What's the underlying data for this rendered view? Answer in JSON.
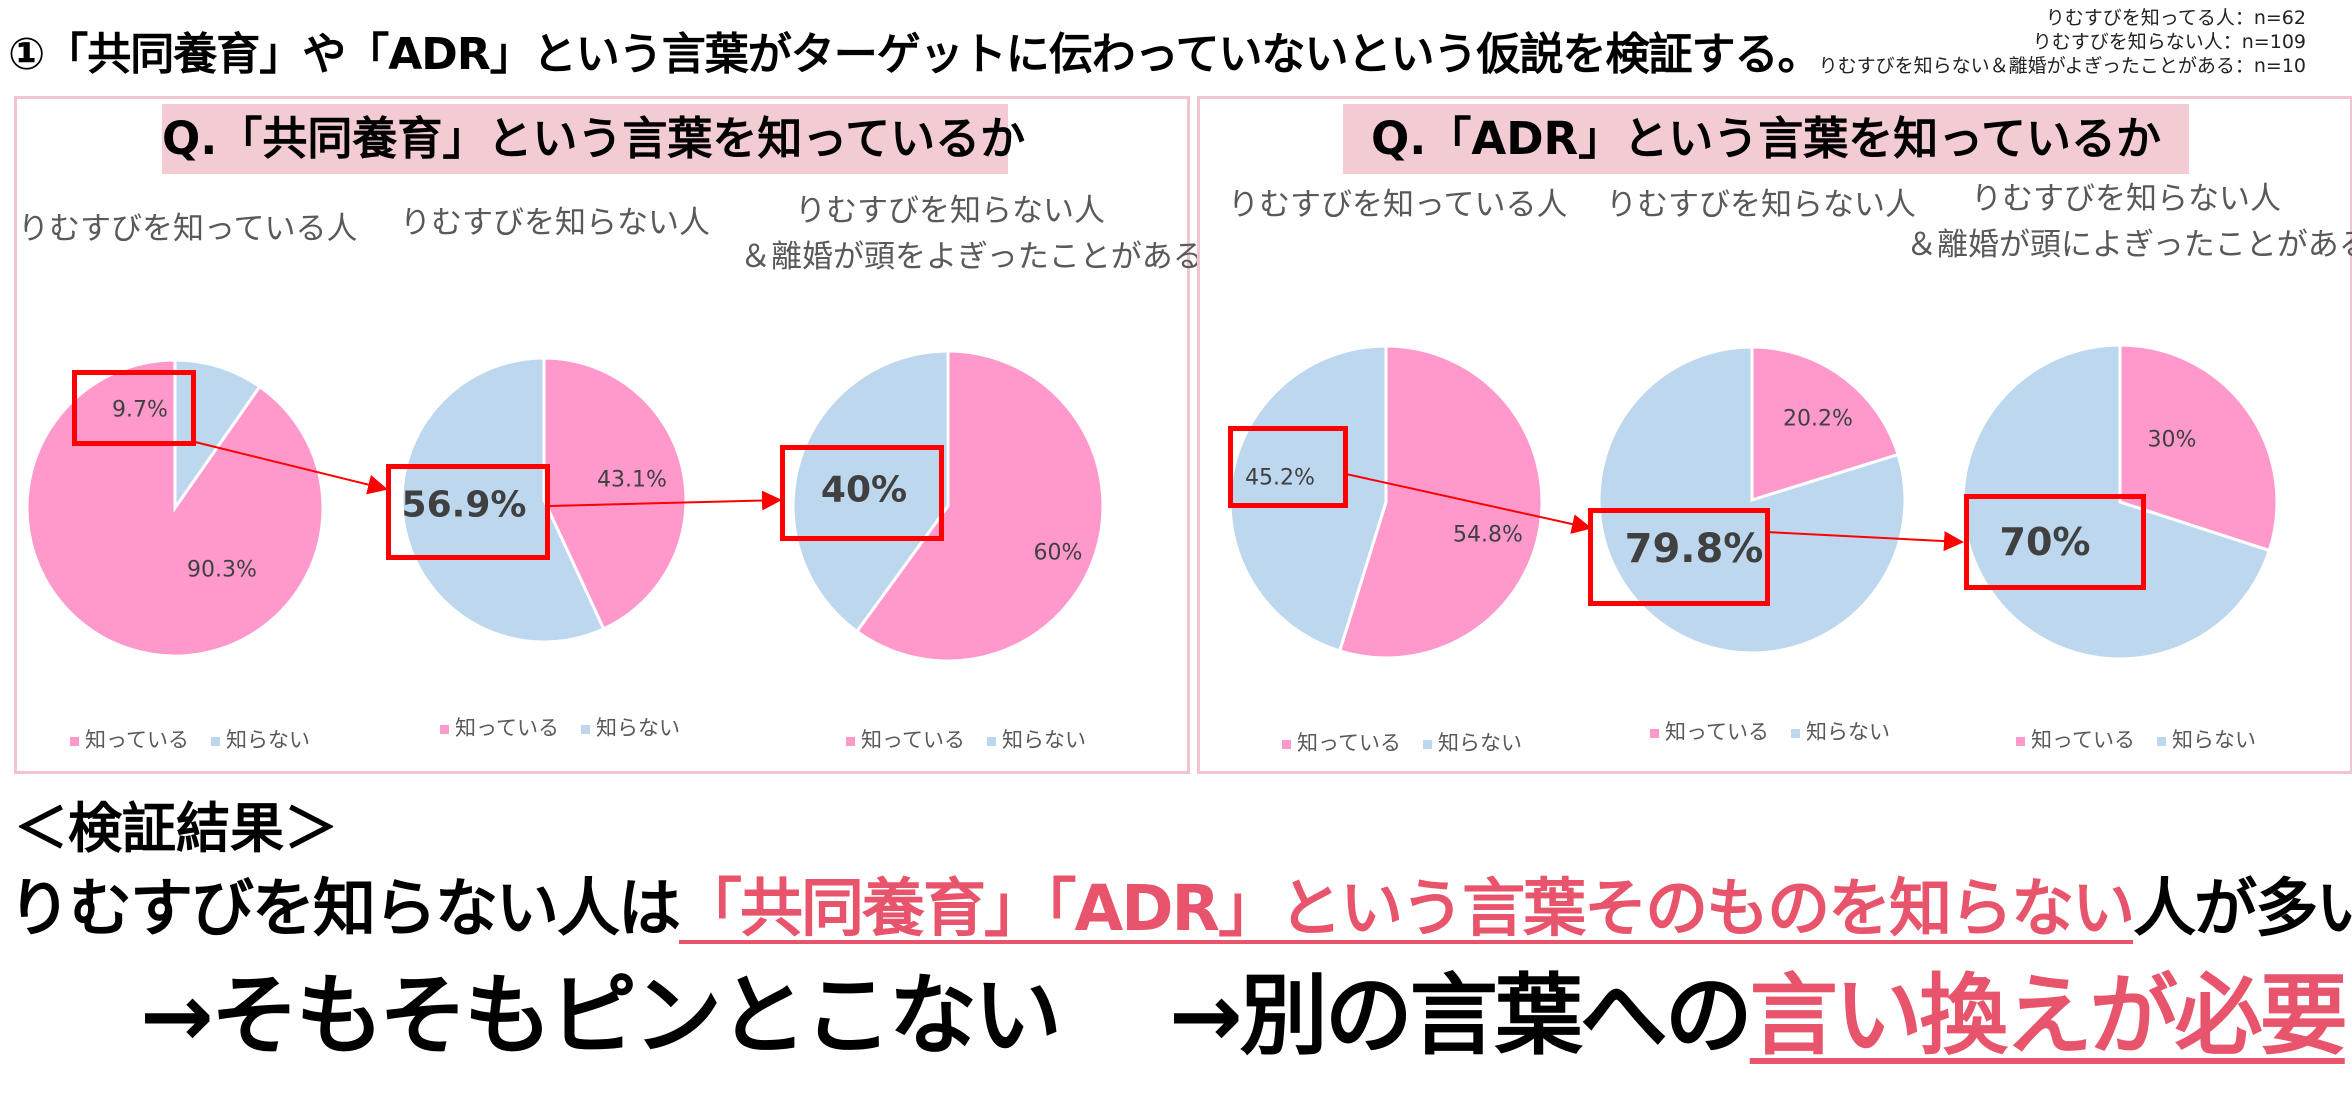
{
  "heading": "①「共同養育」や「ADR」という言葉がターゲットに伝わっていないという仮説を検証する。",
  "samples": [
    "りむすびを知ってる人：n=62",
    "りむすびを知らない人：n=109",
    "りむすびを知らない＆離婚がよぎったことがある：n=10"
  ],
  "colors": {
    "known": "#ff99cc",
    "unknown": "#bdd7ee",
    "accent": "#e8546b",
    "border": "#f2c4cd",
    "highlight": "#ff0000"
  },
  "panels": [
    {
      "question": "Q.「共同養育」という言葉を知っているか",
      "groups": [
        {
          "label_line1": "りむすびを知っている人",
          "label_line2": ""
        },
        {
          "label_line1": "りむすびを知らない人",
          "label_line2": ""
        },
        {
          "label_line1": "りむすびを知らない人",
          "label_line2": "＆離婚が頭をよぎったことがある"
        }
      ]
    },
    {
      "question": "Q.「ADR」という言葉を知っているか",
      "groups": [
        {
          "label_line1": "りむすびを知っている人",
          "label_line2": ""
        },
        {
          "label_line1": "りむすびを知らない人",
          "label_line2": ""
        },
        {
          "label_line1": "りむすびを知らない人",
          "label_line2": "＆離婚が頭によぎったことがある"
        }
      ]
    }
  ],
  "legend": {
    "known": "知っている",
    "unknown": "知らない"
  },
  "chart_data": [
    {
      "type": "pie",
      "title": "「共同養育」を知っているか — りむすびを知っている人",
      "categories": [
        "知っている",
        "知らない"
      ],
      "values": [
        90.3,
        9.7
      ],
      "labels": [
        "90.3%",
        "9.7%"
      ],
      "highlight": "知らない"
    },
    {
      "type": "pie",
      "title": "「共同養育」を知っているか — りむすびを知らない人",
      "categories": [
        "知っている",
        "知らない"
      ],
      "values": [
        43.1,
        56.9
      ],
      "labels": [
        "43.1%",
        "56.9%"
      ],
      "highlight": "知らない"
    },
    {
      "type": "pie",
      "title": "「共同養育」を知っているか — りむすびを知らない人＆離婚が頭をよぎったことがある",
      "categories": [
        "知っている",
        "知らない"
      ],
      "values": [
        60,
        40
      ],
      "labels": [
        "60%",
        "40%"
      ],
      "highlight": "知らない"
    },
    {
      "type": "pie",
      "title": "「ADR」を知っているか — りむすびを知っている人",
      "categories": [
        "知っている",
        "知らない"
      ],
      "values": [
        54.8,
        45.2
      ],
      "labels": [
        "54.8%",
        "45.2%"
      ],
      "highlight": "知らない"
    },
    {
      "type": "pie",
      "title": "「ADR」を知っているか — りむすびを知らない人",
      "categories": [
        "知っている",
        "知らない"
      ],
      "values": [
        20.2,
        79.8
      ],
      "labels": [
        "20.2%",
        "79.8%"
      ],
      "highlight": "知らない"
    },
    {
      "type": "pie",
      "title": "「ADR」を知っているか — りむすびを知らない人＆離婚が頭によぎったことがある",
      "categories": [
        "知っている",
        "知らない"
      ],
      "values": [
        30,
        70
      ],
      "labels": [
        "30%",
        "70%"
      ],
      "highlight": "知らない"
    }
  ],
  "result": {
    "heading": "＜検証結果＞",
    "line1_prefix": "りむすびを知らない人は",
    "line1_highlight": "「共同養育」「ADR」という言葉そのものを知らない",
    "line1_suffix": "人が多い",
    "line2_part1": "→そもそもピンとこない",
    "line2_part2": "→別の言葉への",
    "line2_highlight": "言い換えが必要"
  }
}
